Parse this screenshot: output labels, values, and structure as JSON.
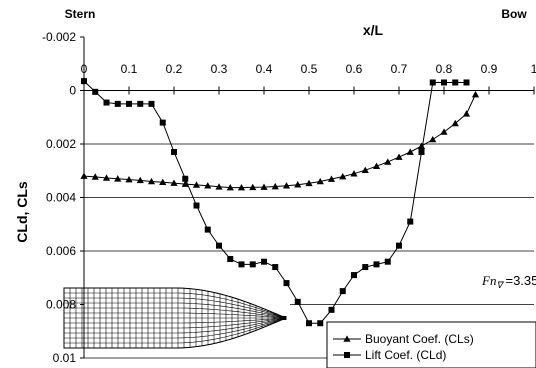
{
  "chart_data": {
    "type": "line",
    "top_left_label": "Stern",
    "top_right_label": "Bow",
    "xlabel": "x/L",
    "ylabel": "CLd, CLs",
    "x_tick_labels": [
      "0",
      "0.1",
      "0.2",
      "0.3",
      "0.4",
      "0.5",
      "0.6",
      "0.7",
      "0.8",
      "0.9",
      "1"
    ],
    "y_tick_labels": [
      "-0.002",
      "0",
      "0.002",
      "0.004",
      "0.006",
      "0.008",
      "0.01"
    ],
    "xlim": [
      0,
      1
    ],
    "ylim": [
      -0.002,
      0.01
    ],
    "y_inverted": true,
    "grid": "horizontal",
    "annotation": {
      "prefix": "Fn",
      "subscript": "∇",
      "value": "=3.35"
    },
    "legend_position": "bottom-right",
    "series": [
      {
        "name": "Buoyant Coef. (CLs)",
        "marker": "triangle",
        "x": [
          0.0,
          0.025,
          0.05,
          0.075,
          0.1,
          0.125,
          0.15,
          0.175,
          0.2,
          0.225,
          0.25,
          0.275,
          0.3,
          0.325,
          0.35,
          0.375,
          0.4,
          0.425,
          0.45,
          0.475,
          0.5,
          0.525,
          0.55,
          0.575,
          0.6,
          0.625,
          0.65,
          0.675,
          0.7,
          0.725,
          0.75,
          0.775,
          0.8,
          0.825,
          0.85,
          0.87
        ],
        "values": [
          0.0032,
          0.00323,
          0.00327,
          0.0033,
          0.00333,
          0.00336,
          0.0034,
          0.00343,
          0.00346,
          0.0035,
          0.00353,
          0.00356,
          0.0036,
          0.00363,
          0.00363,
          0.00362,
          0.00361,
          0.00359,
          0.00356,
          0.00352,
          0.00347,
          0.0034,
          0.00331,
          0.00322,
          0.00311,
          0.00298,
          0.00283,
          0.00267,
          0.00249,
          0.0023,
          0.00208,
          0.00183,
          0.00155,
          0.00123,
          0.00087,
          0.00015
        ]
      },
      {
        "name": "Lift Coef. (CLd)",
        "marker": "square",
        "x": [
          0.0,
          0.025,
          0.05,
          0.075,
          0.1,
          0.125,
          0.15,
          0.175,
          0.2,
          0.225,
          0.25,
          0.275,
          0.3,
          0.325,
          0.35,
          0.375,
          0.4,
          0.425,
          0.45,
          0.475,
          0.5,
          0.525,
          0.55,
          0.575,
          0.6,
          0.625,
          0.65,
          0.675,
          0.7,
          0.725,
          0.75,
          0.775,
          0.8,
          0.825,
          0.85
        ],
        "values": [
          -0.00035,
          5e-05,
          0.00045,
          0.0005,
          0.0005,
          0.0005,
          0.0005,
          0.0012,
          0.0023,
          0.0033,
          0.0043,
          0.0052,
          0.0058,
          0.0063,
          0.0065,
          0.0065,
          0.0064,
          0.0066,
          0.0072,
          0.0079,
          0.0087,
          0.0087,
          0.0082,
          0.0075,
          0.0069,
          0.0066,
          0.0065,
          0.0064,
          0.0058,
          0.0049,
          0.0023,
          -0.0003,
          -0.0003,
          -0.0003,
          -0.0003
        ]
      }
    ]
  }
}
